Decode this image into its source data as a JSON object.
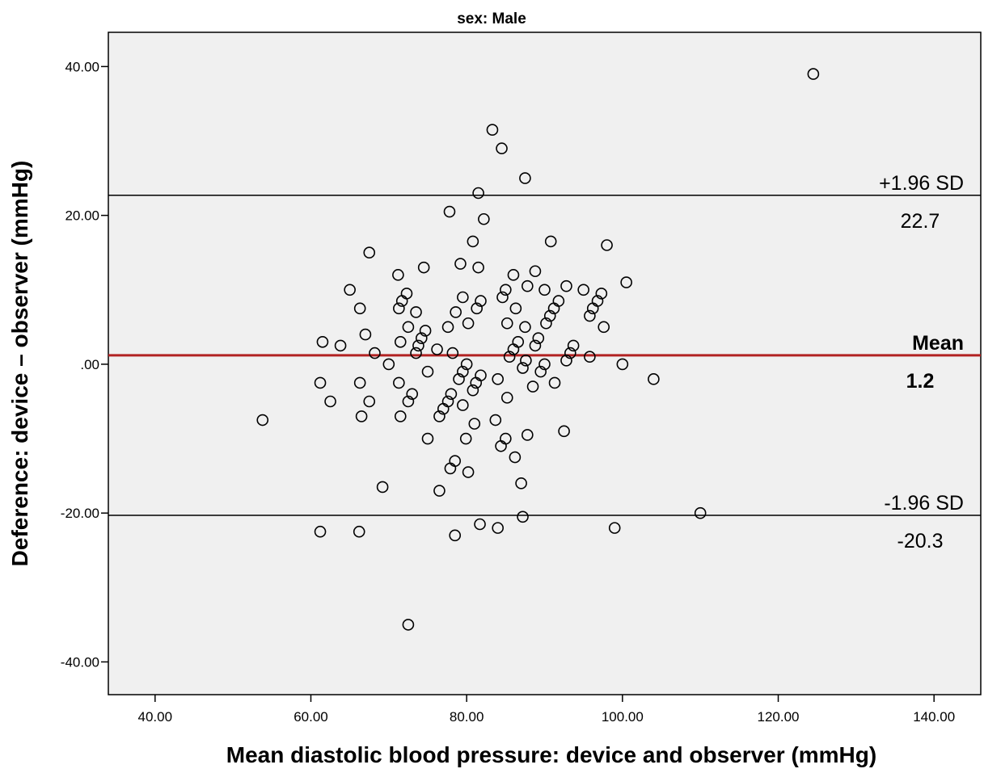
{
  "chart_data": {
    "type": "scatter",
    "title": "sex: Male",
    "xlabel": "Mean diastolic blood pressure: device and observer (mmHg)",
    "ylabel": "Deference: device – observer (mmHg)",
    "xlim": [
      34,
      146
    ],
    "ylim": [
      -44.4,
      44.6
    ],
    "xticks": [
      40,
      60,
      80,
      100,
      120,
      140
    ],
    "xtick_labels": [
      "40.00",
      "60.00",
      "80.00",
      "100.00",
      "120.00",
      "140.00"
    ],
    "yticks": [
      40,
      20,
      0,
      -20,
      -40
    ],
    "ytick_labels": [
      "40.00",
      "20.00",
      ".00",
      "-20.00",
      "-40.00"
    ],
    "grid": false,
    "plot_background": "#f0f0f0",
    "marker_color": "#000000",
    "reference_lines": [
      {
        "name": "upper",
        "value": 22.7,
        "label": "+1.96 SD",
        "value_label": "22.7",
        "color": "#000000",
        "bold": false
      },
      {
        "name": "mean",
        "value": 1.2,
        "label": "Mean",
        "value_label": "1.2",
        "color": "#b22222",
        "bold": true
      },
      {
        "name": "lower",
        "value": -20.3,
        "label": "-1.96 SD",
        "value_label": "-20.3",
        "color": "#000000",
        "bold": false
      }
    ],
    "points": [
      [
        124.5,
        39
      ],
      [
        83.3,
        31.5
      ],
      [
        84.5,
        29
      ],
      [
        87.5,
        25
      ],
      [
        81.5,
        23
      ],
      [
        77.8,
        20.5
      ],
      [
        82.2,
        19.5
      ],
      [
        80.8,
        16.5
      ],
      [
        90.8,
        16.5
      ],
      [
        98,
        16
      ],
      [
        67.5,
        15
      ],
      [
        79.2,
        13.5
      ],
      [
        74.5,
        13
      ],
      [
        81.5,
        13
      ],
      [
        71.2,
        12
      ],
      [
        86,
        12
      ],
      [
        88.8,
        12.5
      ],
      [
        100.5,
        11
      ],
      [
        65,
        10
      ],
      [
        72.3,
        9.5
      ],
      [
        85,
        10
      ],
      [
        87.8,
        10.5
      ],
      [
        90,
        10
      ],
      [
        92.8,
        10.5
      ],
      [
        95,
        10
      ],
      [
        71.7,
        8.5
      ],
      [
        79.5,
        9
      ],
      [
        81.8,
        8.5
      ],
      [
        84.6,
        9
      ],
      [
        91.8,
        8.5
      ],
      [
        96.8,
        8.5
      ],
      [
        97.3,
        9.5
      ],
      [
        66.3,
        7.5
      ],
      [
        71.3,
        7.5
      ],
      [
        73.5,
        7
      ],
      [
        78.6,
        7
      ],
      [
        81.3,
        7.5
      ],
      [
        86.3,
        7.5
      ],
      [
        91.2,
        7.5
      ],
      [
        96.2,
        7.5
      ],
      [
        90.7,
        6.5
      ],
      [
        95.8,
        6.5
      ],
      [
        72.5,
        5
      ],
      [
        74.7,
        4.5
      ],
      [
        77.6,
        5
      ],
      [
        80.2,
        5.5
      ],
      [
        85.2,
        5.5
      ],
      [
        87.5,
        5
      ],
      [
        90.2,
        5.5
      ],
      [
        97.6,
        5
      ],
      [
        67,
        4
      ],
      [
        74.2,
        3.5
      ],
      [
        86.6,
        3
      ],
      [
        89.2,
        3.5
      ],
      [
        61.5,
        3
      ],
      [
        63.8,
        2.5
      ],
      [
        71.5,
        3
      ],
      [
        73.8,
        2.5
      ],
      [
        76.2,
        2
      ],
      [
        86,
        2
      ],
      [
        88.8,
        2.5
      ],
      [
        93.7,
        2.5
      ],
      [
        68.2,
        1.5
      ],
      [
        73.5,
        1.5
      ],
      [
        78.2,
        1.5
      ],
      [
        85.5,
        1
      ],
      [
        93.3,
        1.5
      ],
      [
        95.8,
        1
      ],
      [
        70,
        0
      ],
      [
        80,
        0
      ],
      [
        87.6,
        0.5
      ],
      [
        92.8,
        0.5
      ],
      [
        100,
        0
      ],
      [
        79.5,
        -1
      ],
      [
        75,
        -1
      ],
      [
        87.2,
        -0.5
      ],
      [
        89.5,
        -1
      ],
      [
        90,
        0
      ],
      [
        61.2,
        -2.5
      ],
      [
        66.3,
        -2.5
      ],
      [
        71.3,
        -2.5
      ],
      [
        79,
        -2
      ],
      [
        81.2,
        -2.5
      ],
      [
        81.8,
        -1.5
      ],
      [
        84,
        -2
      ],
      [
        91.3,
        -2.5
      ],
      [
        104,
        -2
      ],
      [
        73,
        -4
      ],
      [
        78,
        -4
      ],
      [
        80.8,
        -3.5
      ],
      [
        88.5,
        -3
      ],
      [
        62.5,
        -5
      ],
      [
        67.5,
        -5
      ],
      [
        72.5,
        -5
      ],
      [
        77.6,
        -5
      ],
      [
        79.5,
        -5.5
      ],
      [
        85.2,
        -4.5
      ],
      [
        53.8,
        -7.5
      ],
      [
        66.5,
        -7
      ],
      [
        71.5,
        -7
      ],
      [
        76.5,
        -7
      ],
      [
        77,
        -6
      ],
      [
        81,
        -8
      ],
      [
        83.7,
        -7.5
      ],
      [
        75,
        -10
      ],
      [
        79.9,
        -10
      ],
      [
        84.4,
        -11
      ],
      [
        85,
        -10
      ],
      [
        87.8,
        -9.5
      ],
      [
        92.5,
        -9
      ],
      [
        78.5,
        -13
      ],
      [
        77.9,
        -14
      ],
      [
        80.2,
        -14.5
      ],
      [
        86.2,
        -12.5
      ],
      [
        69.2,
        -16.5
      ],
      [
        76.5,
        -17
      ],
      [
        87,
        -16
      ],
      [
        110,
        -20
      ],
      [
        61.2,
        -22.5
      ],
      [
        66.2,
        -22.5
      ],
      [
        78.5,
        -23
      ],
      [
        81.7,
        -21.5
      ],
      [
        84,
        -22
      ],
      [
        87.2,
        -20.5
      ],
      [
        99,
        -22
      ],
      [
        72.5,
        -35
      ]
    ]
  }
}
